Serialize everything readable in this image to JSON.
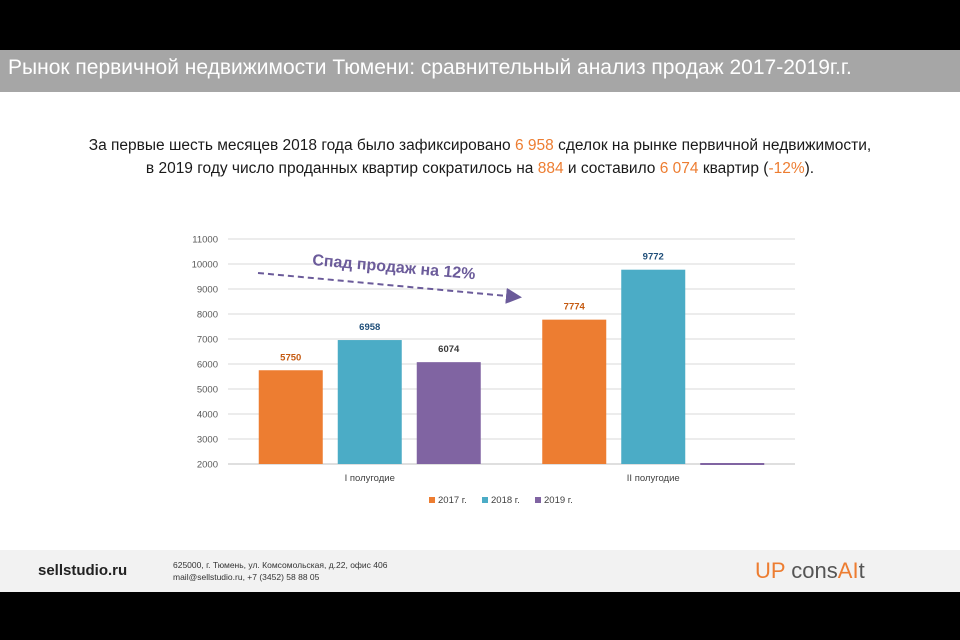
{
  "slide": {
    "title": "Рынок первичной недвижимости Тюмени: сравнительный анализ продаж 2017-2019г.г."
  },
  "summary": {
    "line1_a": "За первые шесть месяцев 2018 года было зафиксировано ",
    "line1_num": "6 958",
    "line1_b": " сделок на рынке первичной недвижимости,",
    "line2_a": "в 2019 году число проданных квартир сократилось на ",
    "line2_num1": "884",
    "line2_b": " и составило ",
    "line2_num2": "6 074",
    "line2_c": " квартир (",
    "line2_pct": "-12%",
    "line2_d": ")."
  },
  "colors": {
    "accent": "#ed7d31",
    "series_2017": "#ed7d31",
    "series_2018": "#4bacc6",
    "series_2019": "#8064a2",
    "annotation": "#6b5b9a"
  },
  "chart_data": {
    "type": "bar",
    "categories": [
      "I полугодие",
      "II полугодие"
    ],
    "series": [
      {
        "name": "2017 г.",
        "values": [
          5750,
          7774
        ]
      },
      {
        "name": "2018 г.",
        "values": [
          6958,
          9772
        ]
      },
      {
        "name": "2019 г.",
        "values": [
          6074,
          null
        ]
      }
    ],
    "ylim": [
      2000,
      11000
    ],
    "yticks": [
      2000,
      3000,
      4000,
      5000,
      6000,
      7000,
      8000,
      9000,
      10000,
      11000
    ],
    "grid": true,
    "legend": "bottom",
    "annotation": "Спад продаж на 12%"
  },
  "footer": {
    "site": "sellstudio.ru",
    "address": "625000, г. Тюмень, ул. Комсомольская, д.22, офис 406",
    "contacts": "mail@sellstudio.ru, +7 (3452) 58 88 05",
    "logo_up": "UP",
    "logo_cons": " cons",
    "logo_ai": "AI",
    "logo_t": "t"
  }
}
